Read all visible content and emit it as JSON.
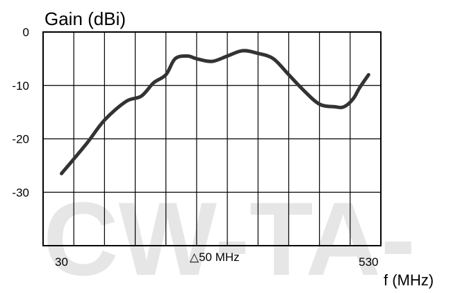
{
  "chart_data": {
    "type": "line",
    "ylabel": "Gain (dBi)",
    "xlabel": "f (MHz)",
    "annotation": "△50 MHz",
    "watermark": "CW-TA-",
    "x_tick_labels": [
      "30",
      "530"
    ],
    "y_tick_labels": [
      "0",
      "-10",
      "-20",
      "-30"
    ],
    "xlim": [
      0,
      550
    ],
    "ylim": [
      -40,
      0
    ],
    "x_ticks": [
      30,
      530
    ],
    "y_ticks": [
      0,
      -10,
      -20,
      -30
    ],
    "x_grid_step": 50,
    "grid": true,
    "legend": "none",
    "series": [
      {
        "color": "#333333",
        "x": [
          30,
          70,
          100,
          135,
          160,
          180,
          200,
          215,
          235,
          250,
          275,
          300,
          325,
          350,
          375,
          400,
          425,
          450,
          475,
          490,
          505,
          515,
          530
        ],
        "y": [
          -26.5,
          -21,
          -16.5,
          -13,
          -12,
          -9.5,
          -8,
          -5,
          -4.5,
          -5,
          -5.5,
          -4.5,
          -3.5,
          -4,
          -5,
          -8,
          -11,
          -13.5,
          -14,
          -14,
          -12.5,
          -10.5,
          -8
        ]
      }
    ]
  }
}
